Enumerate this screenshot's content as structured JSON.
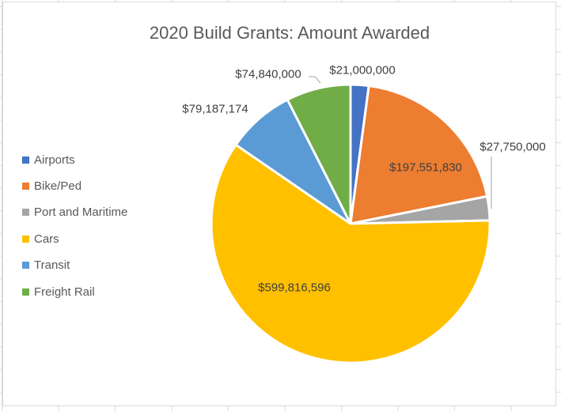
{
  "chart_data": {
    "type": "pie",
    "title": "2020 Build Grants: Amount Awarded",
    "legend_position": "left",
    "rotation_deg": 0,
    "direction": "clockwise",
    "slices": [
      {
        "label": "Airports",
        "value": 21000000,
        "display": "$21,000,000",
        "color": "#4472C4",
        "label_position": "outside",
        "leader_line": false
      },
      {
        "label": "Bike/Ped",
        "value": 197551830,
        "display": "$197,551,830",
        "color": "#ED7D31",
        "label_position": "inside",
        "leader_line": false
      },
      {
        "label": "Port and Maritime",
        "value": 27750000,
        "display": "$27,750,000",
        "color": "#A5A5A5",
        "label_position": "outside",
        "leader_line": true
      },
      {
        "label": "Cars",
        "value": 599816596,
        "display": "$599,816,596",
        "color": "#FFC000",
        "label_position": "inside",
        "leader_line": false
      },
      {
        "label": "Transit",
        "value": 79187174,
        "display": "$79,187,174",
        "color": "#5B9BD5",
        "label_position": "outside",
        "leader_line": false
      },
      {
        "label": "Freight Rail",
        "value": 74840000,
        "display": "$74,840,000",
        "color": "#70AD47",
        "label_position": "outside",
        "leader_line": true
      }
    ]
  },
  "legend": {
    "position": "left",
    "items": [
      "Airports",
      "Bike/Ped",
      "Port and Maritime",
      "Cars",
      "Transit",
      "Freight Rail"
    ]
  },
  "colors": {
    "title_text": "#595959",
    "legend_text": "#595959",
    "data_label_text": "#404040",
    "leader_line": "#A6A6A6",
    "slice_border": "#FFFFFF",
    "chart_border": "#D9D9D9",
    "gridline": "#DADADA",
    "chart_background": "#FFFFFF"
  }
}
